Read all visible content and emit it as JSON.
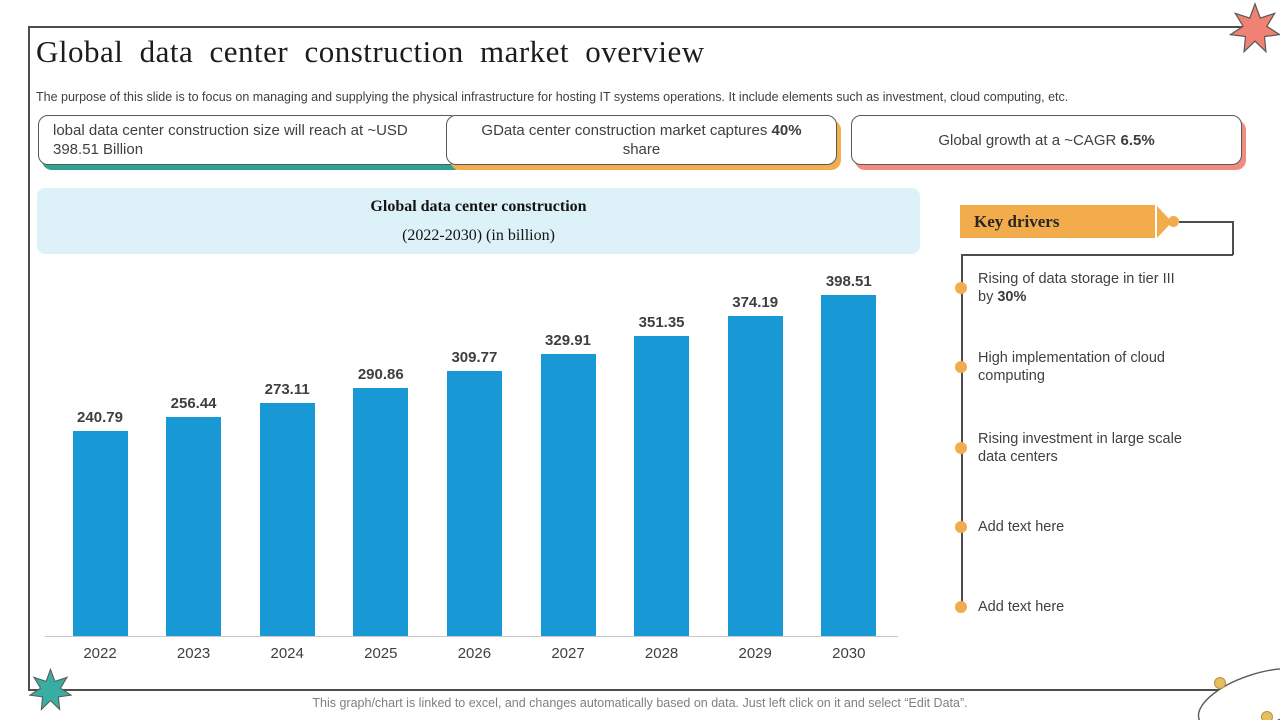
{
  "slide": {
    "title": "Global data center construction market overview",
    "subtitle": "The purpose of this slide is to focus on managing and supplying the physical infrastructure for hosting IT systems operations. It include elements such as investment, cloud computing, etc.",
    "footer": "This graph/chart is linked to excel, and changes automatically based on data. Just left click on it and select “Edit Data”."
  },
  "callouts": [
    {
      "text1": "lobal data center construction size will reach at ~USD 398.51 Billion",
      "bold": "",
      "text2": "",
      "accent": "#2fa294"
    },
    {
      "text1": "GData center construction market captures ",
      "bold": "40%",
      "text2": "share",
      "accent": "#f2ae4d"
    },
    {
      "text1": "Global growth at a ~CAGR ",
      "bold": "6.5%",
      "text2": "",
      "accent": "#f18c80"
    }
  ],
  "key_drivers": {
    "label": "Key drivers",
    "accent": "#f2ac4b",
    "items": [
      {
        "text1": "Rising of data storage in tier III by ",
        "bold": "30%",
        "text2": ""
      },
      {
        "text1": "High implementation of cloud computing",
        "bold": "",
        "text2": ""
      },
      {
        "text1": "Rising investment in large scale data centers",
        "bold": "",
        "text2": ""
      },
      {
        "text1": "Add text here",
        "bold": "",
        "text2": ""
      },
      {
        "text1": "Add text here",
        "bold": "",
        "text2": ""
      }
    ]
  },
  "chart_data": {
    "type": "bar",
    "title": "Global data center construction",
    "subtitle": "(2022-2030) (in billion)",
    "categories": [
      "2022",
      "2023",
      "2024",
      "2025",
      "2026",
      "2027",
      "2028",
      "2029",
      "2030"
    ],
    "values": [
      240.79,
      256.44,
      273.11,
      290.86,
      309.77,
      329.91,
      351.35,
      374.19,
      398.51
    ],
    "bar_color": "#1899d6",
    "ylim": [
      0,
      420
    ],
    "grid": false,
    "legend": false,
    "data_labels": true,
    "xlabel": "",
    "ylabel": ""
  },
  "decor": {
    "star_top_right": "#f08173",
    "star_bottom_left": "#38ada2",
    "ellipse_dot": "#e5be62"
  }
}
